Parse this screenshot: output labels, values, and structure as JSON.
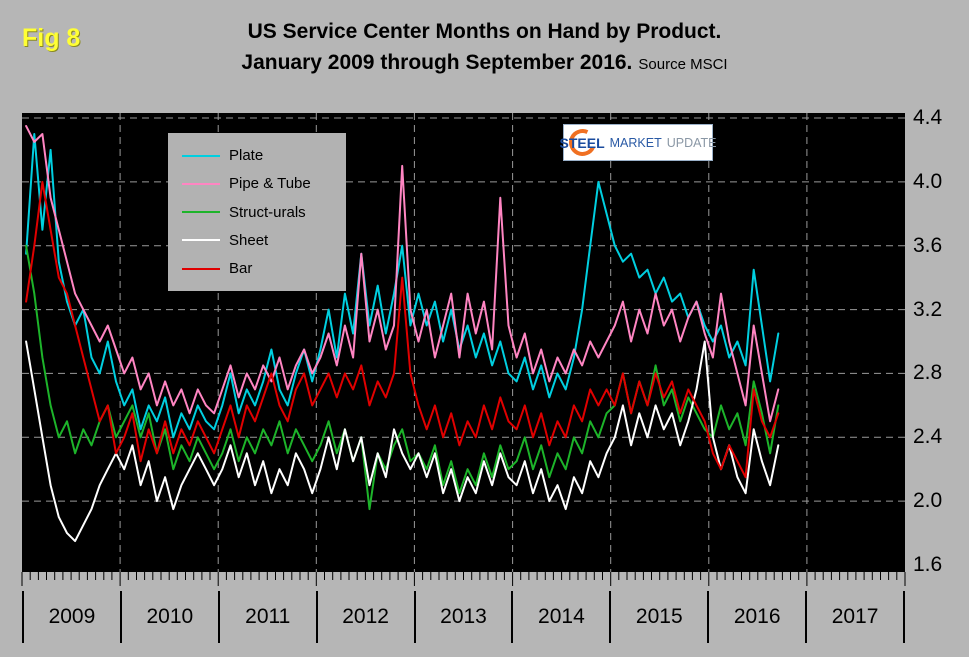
{
  "header": {
    "fig_label": "Fig 8",
    "title_line1": "US Service Center Months on Hand by Product.",
    "title_line2": "January 2009 through September 2016.",
    "source": "Source MSCI"
  },
  "logo": {
    "part1": "STEEL",
    "part2": "MARKET",
    "part3": "UPDATE"
  },
  "colors": {
    "background": "#b6b6b6",
    "plot_bg": "#000000",
    "grid": "#9a9a9a",
    "fig_label": "#ffff35",
    "axis_text": "#000000"
  },
  "chart_data": {
    "type": "line",
    "title": "US Service Center Months on Hand by Product. January 2009 through September 2016.",
    "source": "MSCI",
    "x_start": "2009-01",
    "x_end": "2016-09",
    "frequency": "monthly",
    "n_points": 93,
    "xlabel": "",
    "ylabel": "",
    "ylim": [
      1.6,
      4.4
    ],
    "yticks": [
      1.6,
      2.0,
      2.4,
      2.8,
      3.2,
      3.6,
      4.0,
      4.4
    ],
    "year_labels": [
      "2009",
      "2010",
      "2011",
      "2012",
      "2013",
      "2014",
      "2015",
      "2016",
      "2017"
    ],
    "grid": true,
    "legend_position": "top-left",
    "series": [
      {
        "name": "Plate",
        "color": "#00cfe0",
        "values": [
          3.55,
          4.3,
          3.7,
          4.2,
          3.5,
          3.25,
          3.1,
          3.2,
          2.9,
          2.8,
          3.0,
          2.75,
          2.6,
          2.7,
          2.45,
          2.6,
          2.5,
          2.65,
          2.4,
          2.55,
          2.45,
          2.6,
          2.5,
          2.45,
          2.6,
          2.8,
          2.55,
          2.7,
          2.6,
          2.75,
          2.95,
          2.7,
          2.6,
          2.8,
          2.95,
          2.75,
          2.95,
          3.2,
          2.9,
          3.3,
          3.05,
          3.55,
          3.1,
          3.35,
          3.05,
          3.3,
          3.6,
          3.1,
          3.3,
          3.1,
          3.25,
          3.0,
          3.2,
          2.95,
          3.1,
          2.9,
          3.05,
          2.85,
          3.0,
          2.8,
          2.75,
          2.9,
          2.7,
          2.85,
          2.65,
          2.8,
          2.7,
          2.9,
          3.2,
          3.6,
          4.0,
          3.8,
          3.6,
          3.5,
          3.55,
          3.4,
          3.45,
          3.3,
          3.4,
          3.25,
          3.3,
          3.15,
          3.25,
          3.1,
          3.0,
          3.1,
          2.9,
          3.0,
          2.85,
          3.45,
          3.1,
          2.75,
          3.05
        ]
      },
      {
        "name": "Pipe & Tube",
        "color": "#ff85c2",
        "values": [
          4.35,
          4.25,
          4.3,
          3.9,
          3.7,
          3.5,
          3.3,
          3.2,
          3.1,
          3.0,
          3.1,
          2.95,
          2.8,
          2.9,
          2.7,
          2.8,
          2.6,
          2.75,
          2.6,
          2.7,
          2.55,
          2.7,
          2.6,
          2.55,
          2.7,
          2.85,
          2.65,
          2.8,
          2.7,
          2.85,
          2.75,
          2.9,
          2.7,
          2.85,
          2.95,
          2.8,
          2.9,
          3.05,
          2.85,
          3.1,
          2.9,
          3.55,
          3.0,
          3.2,
          2.95,
          3.1,
          4.1,
          3.2,
          3.0,
          3.2,
          2.9,
          3.1,
          3.3,
          2.9,
          3.3,
          3.05,
          3.25,
          2.95,
          3.9,
          3.1,
          2.9,
          3.05,
          2.8,
          2.95,
          2.75,
          2.9,
          2.8,
          2.95,
          2.85,
          3.0,
          2.9,
          3.0,
          3.1,
          3.25,
          3.0,
          3.2,
          3.05,
          3.3,
          3.1,
          3.2,
          3.0,
          3.15,
          3.25,
          3.05,
          2.9,
          3.3,
          3.0,
          2.8,
          2.6,
          3.1,
          2.8,
          2.5,
          2.7
        ]
      },
      {
        "name": "Struct-urals",
        "color": "#1db42a",
        "values": [
          3.6,
          3.3,
          2.9,
          2.6,
          2.4,
          2.5,
          2.3,
          2.45,
          2.35,
          2.5,
          2.6,
          2.4,
          2.5,
          2.6,
          2.4,
          2.55,
          2.3,
          2.45,
          2.2,
          2.35,
          2.25,
          2.4,
          2.3,
          2.2,
          2.3,
          2.45,
          2.25,
          2.4,
          2.3,
          2.45,
          2.35,
          2.5,
          2.3,
          2.45,
          2.35,
          2.25,
          2.35,
          2.5,
          2.3,
          2.45,
          2.25,
          2.4,
          1.95,
          2.3,
          2.2,
          2.35,
          2.45,
          2.25,
          2.3,
          2.2,
          2.35,
          2.1,
          2.25,
          2.05,
          2.2,
          2.1,
          2.3,
          2.15,
          2.35,
          2.2,
          2.25,
          2.4,
          2.2,
          2.35,
          2.15,
          2.3,
          2.2,
          2.4,
          2.3,
          2.5,
          2.4,
          2.55,
          2.6,
          2.8,
          2.55,
          2.75,
          2.6,
          2.85,
          2.6,
          2.7,
          2.5,
          2.65,
          2.55,
          2.45,
          2.4,
          2.6,
          2.45,
          2.55,
          2.35,
          2.75,
          2.55,
          2.3,
          2.6
        ]
      },
      {
        "name": "Sheet",
        "color": "#ffffff",
        "values": [
          3.0,
          2.7,
          2.4,
          2.1,
          1.9,
          1.8,
          1.75,
          1.85,
          1.95,
          2.1,
          2.2,
          2.3,
          2.2,
          2.35,
          2.1,
          2.25,
          2.0,
          2.15,
          1.95,
          2.1,
          2.2,
          2.3,
          2.2,
          2.1,
          2.2,
          2.35,
          2.15,
          2.3,
          2.1,
          2.25,
          2.05,
          2.2,
          2.1,
          2.3,
          2.2,
          2.05,
          2.2,
          2.4,
          2.2,
          2.45,
          2.25,
          2.4,
          2.1,
          2.3,
          2.15,
          2.45,
          2.3,
          2.2,
          2.3,
          2.15,
          2.3,
          2.05,
          2.2,
          2.0,
          2.15,
          2.05,
          2.25,
          2.1,
          2.3,
          2.15,
          2.1,
          2.25,
          2.05,
          2.2,
          2.0,
          2.1,
          1.95,
          2.15,
          2.05,
          2.25,
          2.15,
          2.3,
          2.4,
          2.6,
          2.35,
          2.55,
          2.4,
          2.6,
          2.45,
          2.55,
          2.35,
          2.5,
          2.7,
          3.0,
          2.4,
          2.2,
          2.35,
          2.15,
          2.05,
          2.45,
          2.25,
          2.1,
          2.35
        ]
      },
      {
        "name": "Bar",
        "color": "#e00000",
        "values": [
          3.25,
          3.6,
          4.0,
          3.7,
          3.4,
          3.3,
          3.1,
          2.9,
          2.7,
          2.5,
          2.6,
          2.3,
          2.4,
          2.55,
          2.25,
          2.45,
          2.3,
          2.5,
          2.3,
          2.45,
          2.35,
          2.5,
          2.4,
          2.3,
          2.45,
          2.6,
          2.4,
          2.6,
          2.5,
          2.65,
          2.8,
          2.6,
          2.5,
          2.7,
          2.8,
          2.6,
          2.7,
          2.8,
          2.65,
          2.8,
          2.7,
          2.85,
          2.6,
          2.75,
          2.65,
          2.8,
          3.4,
          2.8,
          2.6,
          2.45,
          2.6,
          2.4,
          2.55,
          2.35,
          2.5,
          2.4,
          2.6,
          2.45,
          2.65,
          2.5,
          2.45,
          2.6,
          2.4,
          2.55,
          2.35,
          2.5,
          2.4,
          2.6,
          2.5,
          2.7,
          2.6,
          2.7,
          2.6,
          2.8,
          2.55,
          2.75,
          2.6,
          2.8,
          2.65,
          2.75,
          2.55,
          2.7,
          2.6,
          2.5,
          2.3,
          2.2,
          2.35,
          2.25,
          2.15,
          2.7,
          2.5,
          2.4,
          2.55
        ]
      }
    ]
  }
}
